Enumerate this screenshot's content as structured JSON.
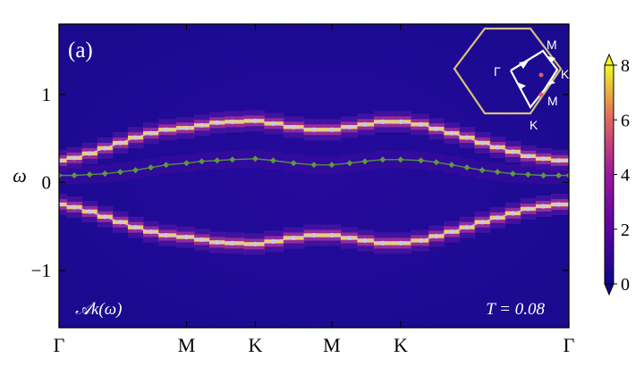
{
  "chart_data": {
    "type": "heatmap",
    "panel_label": "(a)",
    "ylabel": "ω",
    "ylim": [
      -1.65,
      1.8
    ],
    "y_ticks": [
      1,
      0,
      -1
    ],
    "y_tick_labels": [
      "1",
      "0",
      "−1"
    ],
    "x_ticks": [
      0,
      0.25,
      0.385,
      0.535,
      0.67,
      1.0
    ],
    "x_tick_labels": [
      "Γ",
      "M",
      "K",
      "M",
      "K",
      "Γ"
    ],
    "annotation_left": "𝒜k(ω)",
    "annotation_right": "T = 0.08",
    "colorbar": {
      "ticks": [
        0,
        2,
        4,
        6,
        8
      ],
      "tick_labels": [
        "0",
        "2",
        "4",
        "6",
        "8"
      ],
      "range": [
        0,
        8
      ]
    },
    "inset": {
      "labels": [
        "Γ",
        "M",
        "K",
        "M",
        "K"
      ],
      "hexagon_color": "#d8c07a",
      "path_color": "#ffffff"
    },
    "series": [
      {
        "marker": "circle",
        "color": "#c9c7ee",
        "x": [
          0,
          0.03,
          0.06,
          0.09,
          0.12,
          0.15,
          0.18,
          0.21,
          0.25,
          0.28,
          0.31,
          0.34,
          0.385,
          0.42,
          0.46,
          0.5,
          0.535,
          0.57,
          0.6,
          0.635,
          0.67,
          0.71,
          0.74,
          0.77,
          0.8,
          0.83,
          0.86,
          0.89,
          0.92,
          0.95,
          0.98,
          1.0
        ],
        "y": [
          0.25,
          0.28,
          0.33,
          0.39,
          0.45,
          0.51,
          0.56,
          0.6,
          0.62,
          0.65,
          0.68,
          0.69,
          0.7,
          0.67,
          0.63,
          0.6,
          0.6,
          0.63,
          0.66,
          0.69,
          0.69,
          0.66,
          0.61,
          0.56,
          0.51,
          0.45,
          0.4,
          0.35,
          0.3,
          0.27,
          0.25,
          0.25
        ]
      },
      {
        "marker": "diamond",
        "color": "#5d9a3a",
        "x": [
          0,
          0.03,
          0.06,
          0.09,
          0.12,
          0.15,
          0.18,
          0.21,
          0.25,
          0.28,
          0.31,
          0.34,
          0.385,
          0.42,
          0.46,
          0.5,
          0.535,
          0.57,
          0.6,
          0.635,
          0.67,
          0.71,
          0.74,
          0.77,
          0.8,
          0.83,
          0.86,
          0.89,
          0.92,
          0.95,
          0.98,
          1.0
        ],
        "y": [
          0.08,
          0.08,
          0.09,
          0.1,
          0.12,
          0.14,
          0.17,
          0.2,
          0.22,
          0.24,
          0.25,
          0.26,
          0.27,
          0.25,
          0.22,
          0.2,
          0.2,
          0.22,
          0.24,
          0.26,
          0.26,
          0.25,
          0.23,
          0.2,
          0.17,
          0.14,
          0.12,
          0.1,
          0.09,
          0.08,
          0.08,
          0.08
        ]
      },
      {
        "marker": "circle",
        "color": "#c9c7ee",
        "x": [
          0,
          0.03,
          0.06,
          0.09,
          0.12,
          0.15,
          0.18,
          0.21,
          0.25,
          0.28,
          0.31,
          0.34,
          0.385,
          0.42,
          0.46,
          0.5,
          0.535,
          0.57,
          0.6,
          0.635,
          0.67,
          0.71,
          0.74,
          0.77,
          0.8,
          0.83,
          0.86,
          0.89,
          0.92,
          0.95,
          0.98,
          1.0
        ],
        "y": [
          -0.25,
          -0.28,
          -0.33,
          -0.39,
          -0.45,
          -0.51,
          -0.56,
          -0.6,
          -0.62,
          -0.65,
          -0.68,
          -0.69,
          -0.7,
          -0.67,
          -0.63,
          -0.6,
          -0.6,
          -0.63,
          -0.66,
          -0.69,
          -0.69,
          -0.66,
          -0.61,
          -0.56,
          -0.51,
          -0.45,
          -0.4,
          -0.35,
          -0.3,
          -0.27,
          -0.25,
          -0.25
        ]
      }
    ]
  }
}
